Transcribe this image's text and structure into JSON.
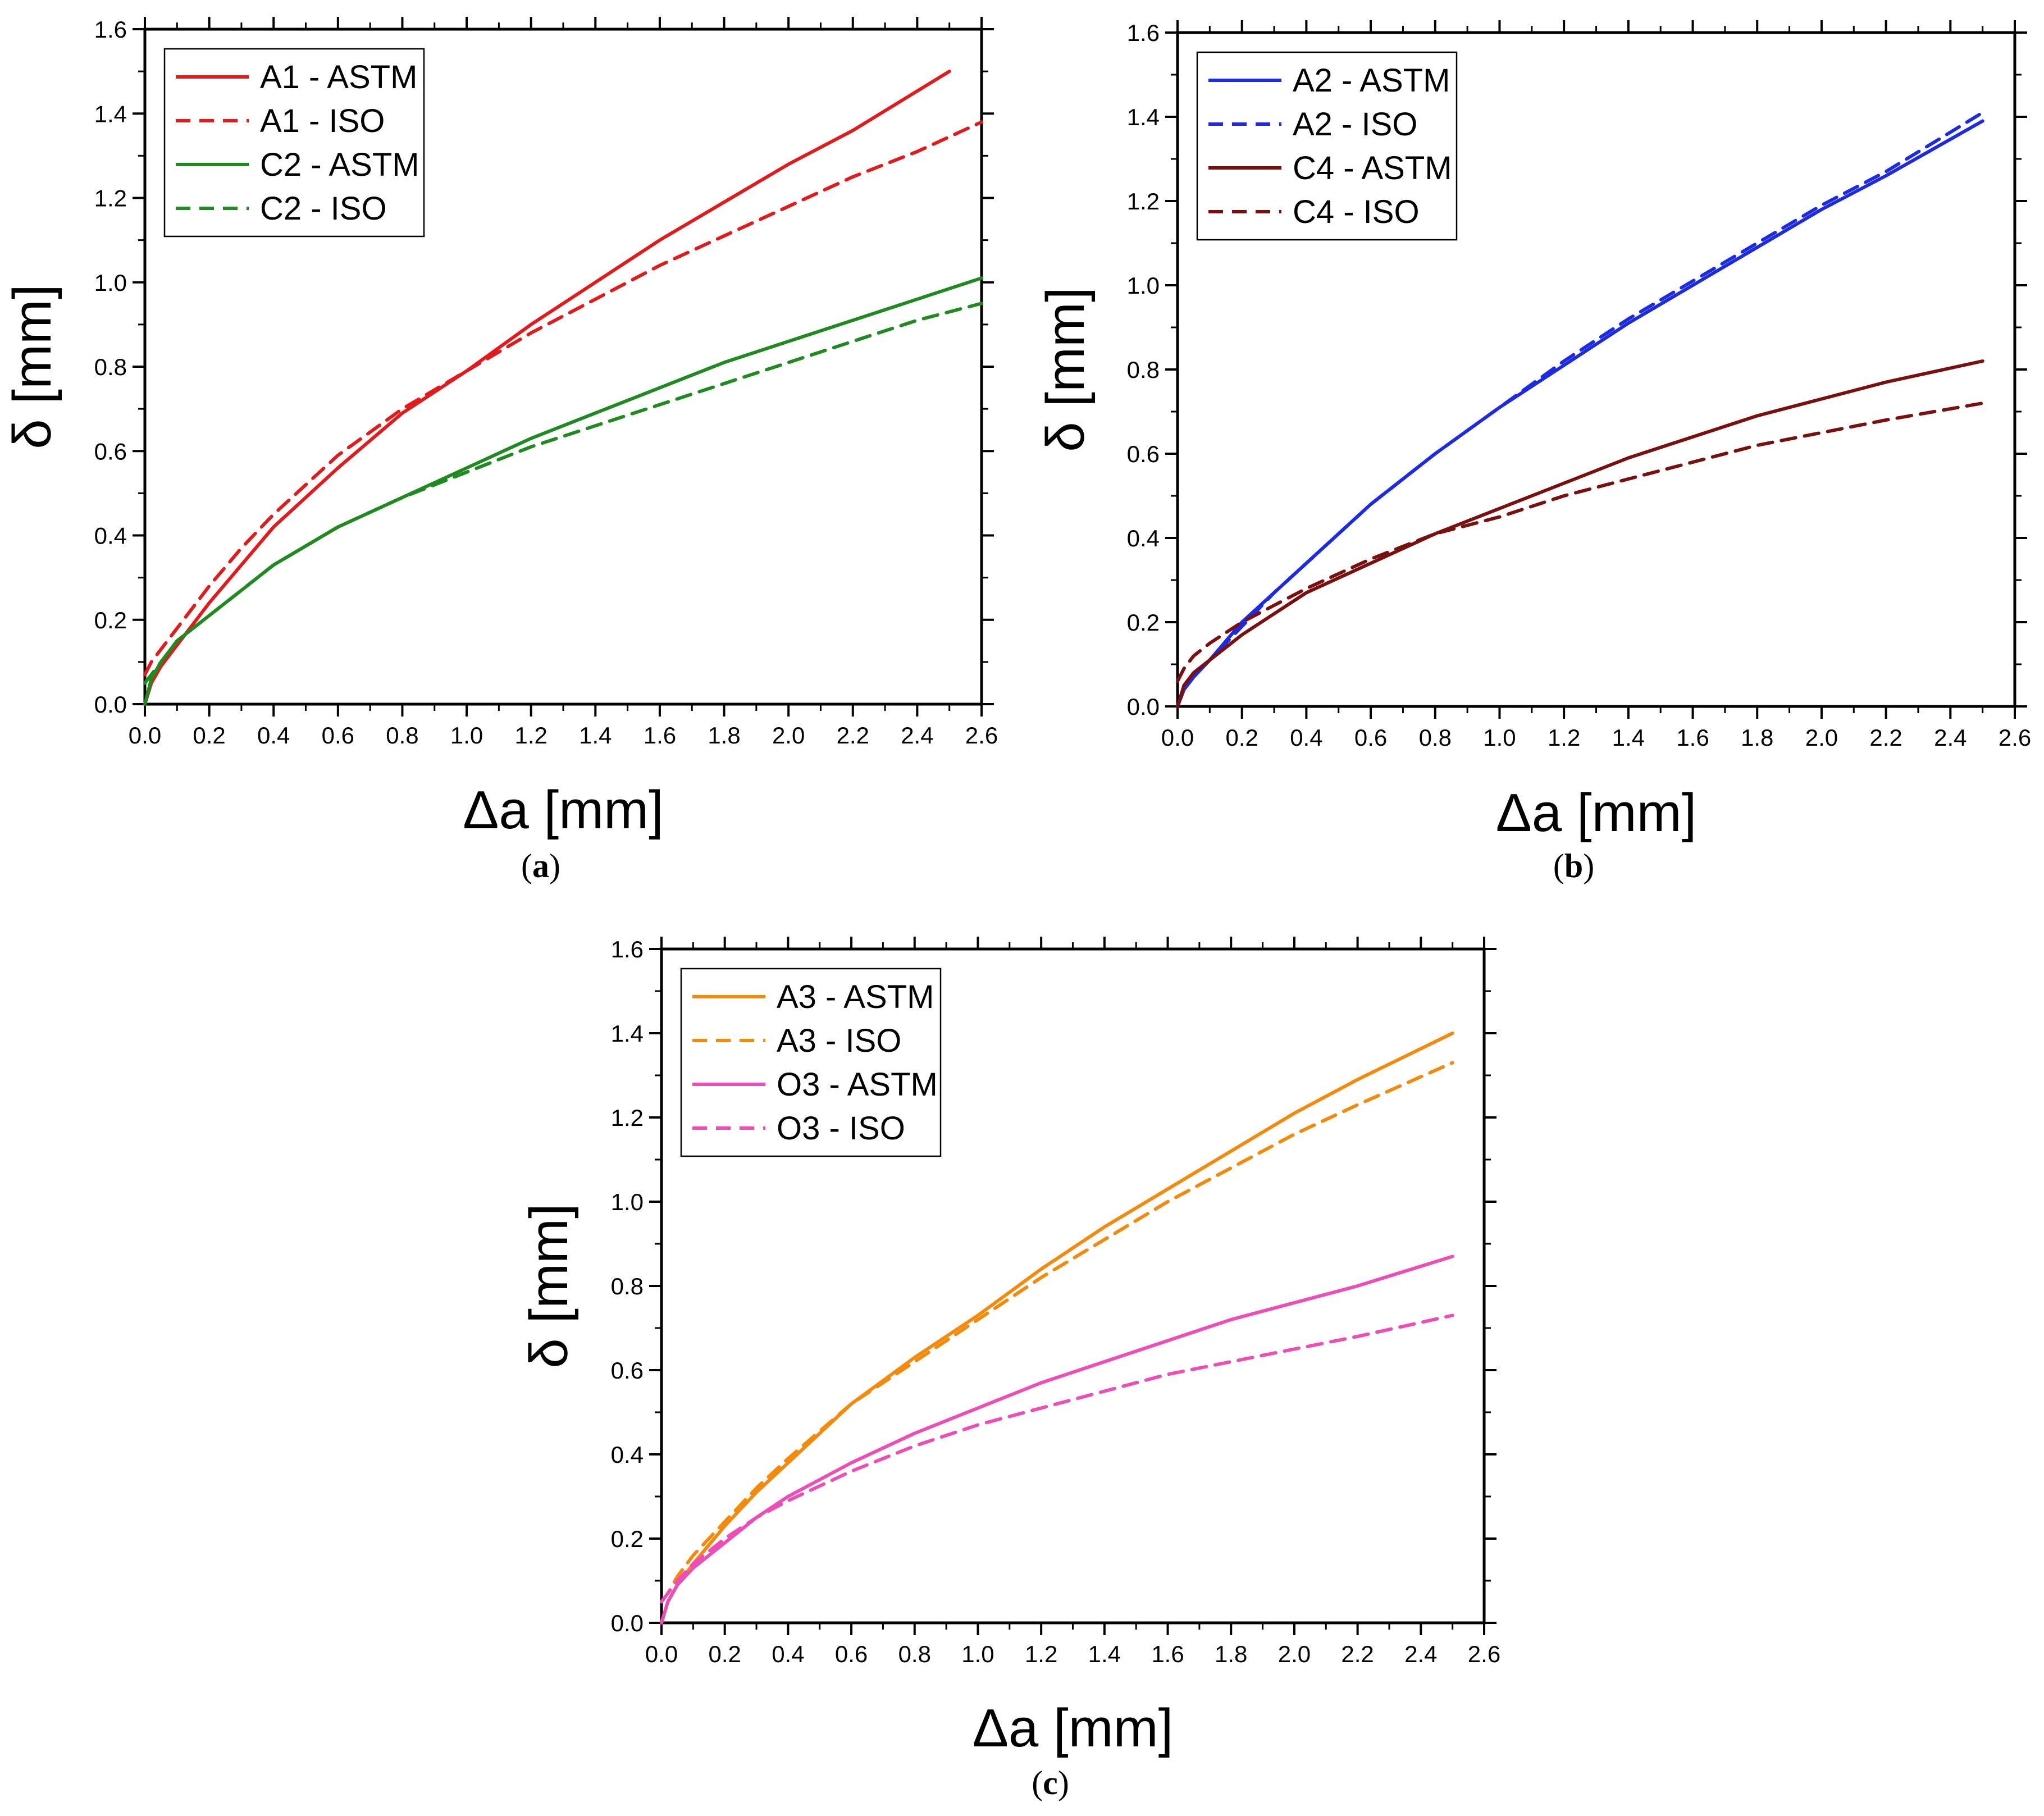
{
  "chart_data": [
    {
      "type": "line",
      "panel_label": "a",
      "xlabel": "Δa [mm]",
      "ylabel": "δ [mm]",
      "xlim": [
        0,
        2.6
      ],
      "ylim": [
        0,
        1.6
      ],
      "xticks": [
        "0.0",
        "0.2",
        "0.4",
        "0.6",
        "0.8",
        "1.0",
        "1.2",
        "1.4",
        "1.6",
        "1.8",
        "2.0",
        "2.2",
        "2.4",
        "2.6"
      ],
      "yticks": [
        "0.0",
        "0.2",
        "0.4",
        "0.6",
        "0.8",
        "1.0",
        "1.2",
        "1.4",
        "1.6"
      ],
      "legend_position": "top-left",
      "series": [
        {
          "name": "A1 - ASTM",
          "color": "#e31a1c",
          "dash": "solid",
          "x": [
            0,
            0.02,
            0.05,
            0.1,
            0.2,
            0.3,
            0.4,
            0.6,
            0.8,
            1.0,
            1.2,
            1.4,
            1.6,
            1.8,
            2.0,
            2.2,
            2.5
          ],
          "y": [
            0,
            0.05,
            0.09,
            0.14,
            0.24,
            0.33,
            0.42,
            0.56,
            0.69,
            0.79,
            0.9,
            1.0,
            1.1,
            1.19,
            1.28,
            1.36,
            1.5
          ]
        },
        {
          "name": "A1 - ISO",
          "color": "#e31a1c",
          "dash": "dashed",
          "x": [
            0,
            0.02,
            0.05,
            0.1,
            0.2,
            0.3,
            0.4,
            0.6,
            0.8,
            1.0,
            1.2,
            1.4,
            1.6,
            1.8,
            2.0,
            2.2,
            2.4,
            2.6
          ],
          "y": [
            0.07,
            0.1,
            0.13,
            0.18,
            0.28,
            0.37,
            0.45,
            0.59,
            0.7,
            0.79,
            0.88,
            0.96,
            1.04,
            1.11,
            1.18,
            1.25,
            1.31,
            1.38
          ]
        },
        {
          "name": "C2 - ASTM",
          "color": "#1f8a1f",
          "dash": "solid",
          "x": [
            0,
            0.02,
            0.05,
            0.1,
            0.2,
            0.3,
            0.4,
            0.6,
            0.8,
            1.0,
            1.2,
            1.4,
            1.6,
            1.8,
            2.0,
            2.2,
            2.4,
            2.6
          ],
          "y": [
            0,
            0.06,
            0.1,
            0.15,
            0.21,
            0.27,
            0.33,
            0.42,
            0.49,
            0.56,
            0.63,
            0.69,
            0.75,
            0.81,
            0.86,
            0.91,
            0.96,
            1.01
          ]
        },
        {
          "name": "C2 - ISO",
          "color": "#1f8a1f",
          "dash": "dashed",
          "x": [
            0,
            0.02,
            0.05,
            0.1,
            0.2,
            0.3,
            0.4,
            0.6,
            0.8,
            1.0,
            1.2,
            1.4,
            1.6,
            1.8,
            2.0,
            2.2,
            2.4,
            2.6
          ],
          "y": [
            0.05,
            0.07,
            0.1,
            0.15,
            0.21,
            0.27,
            0.33,
            0.42,
            0.49,
            0.55,
            0.61,
            0.66,
            0.71,
            0.76,
            0.81,
            0.86,
            0.91,
            0.95
          ]
        }
      ]
    },
    {
      "type": "line",
      "panel_label": "b",
      "xlabel": "Δa [mm]",
      "ylabel": "δ [mm]",
      "xlim": [
        0,
        2.6
      ],
      "ylim": [
        0,
        1.6
      ],
      "xticks": [
        "0.0",
        "0.2",
        "0.4",
        "0.6",
        "0.8",
        "1.0",
        "1.2",
        "1.4",
        "1.6",
        "1.8",
        "2.0",
        "2.2",
        "2.4",
        "2.6"
      ],
      "yticks": [
        "0.0",
        "0.2",
        "0.4",
        "0.6",
        "0.8",
        "1.0",
        "1.2",
        "1.4",
        "1.6"
      ],
      "legend_position": "top-left",
      "series": [
        {
          "name": "A2 - ASTM",
          "color": "#1c2be3",
          "dash": "solid",
          "x": [
            0,
            0.02,
            0.05,
            0.1,
            0.2,
            0.3,
            0.4,
            0.6,
            0.8,
            1.0,
            1.2,
            1.4,
            1.6,
            1.8,
            2.0,
            2.2,
            2.5
          ],
          "y": [
            0,
            0.04,
            0.07,
            0.11,
            0.2,
            0.27,
            0.34,
            0.48,
            0.6,
            0.71,
            0.81,
            0.91,
            1.0,
            1.09,
            1.18,
            1.26,
            1.39
          ]
        },
        {
          "name": "A2 - ISO",
          "color": "#1c2be3",
          "dash": "dashed",
          "x": [
            0,
            0.02,
            0.05,
            0.1,
            0.2,
            0.3,
            0.4,
            0.6,
            0.8,
            1.0,
            1.2,
            1.4,
            1.6,
            1.8,
            2.0,
            2.2,
            2.5
          ],
          "y": [
            0,
            0.04,
            0.07,
            0.11,
            0.19,
            0.27,
            0.34,
            0.48,
            0.6,
            0.71,
            0.82,
            0.92,
            1.01,
            1.1,
            1.19,
            1.27,
            1.41
          ]
        },
        {
          "name": "C4 - ASTM",
          "color": "#7a0f0f",
          "dash": "solid",
          "x": [
            0,
            0.02,
            0.05,
            0.1,
            0.2,
            0.3,
            0.4,
            0.6,
            0.8,
            1.0,
            1.2,
            1.4,
            1.6,
            1.8,
            2.0,
            2.2,
            2.5
          ],
          "y": [
            0,
            0.05,
            0.08,
            0.11,
            0.17,
            0.22,
            0.27,
            0.34,
            0.41,
            0.47,
            0.53,
            0.59,
            0.64,
            0.69,
            0.73,
            0.77,
            0.82
          ]
        },
        {
          "name": "C4 - ISO",
          "color": "#7a0f0f",
          "dash": "dashed",
          "x": [
            0,
            0.02,
            0.05,
            0.1,
            0.2,
            0.3,
            0.4,
            0.6,
            0.8,
            1.0,
            1.2,
            1.4,
            1.6,
            1.8,
            2.0,
            2.2,
            2.5
          ],
          "y": [
            0.06,
            0.09,
            0.12,
            0.15,
            0.2,
            0.24,
            0.28,
            0.35,
            0.41,
            0.45,
            0.5,
            0.54,
            0.58,
            0.62,
            0.65,
            0.68,
            0.72
          ]
        }
      ]
    },
    {
      "type": "line",
      "panel_label": "c",
      "xlabel": "Δa [mm]",
      "ylabel": "δ [mm]",
      "xlim": [
        0,
        2.6
      ],
      "ylim": [
        0,
        1.6
      ],
      "xticks": [
        "0.0",
        "0.2",
        "0.4",
        "0.6",
        "0.8",
        "1.0",
        "1.2",
        "1.4",
        "1.6",
        "1.8",
        "2.0",
        "2.2",
        "2.4",
        "2.6"
      ],
      "yticks": [
        "0.0",
        "0.2",
        "0.4",
        "0.6",
        "0.8",
        "1.0",
        "1.2",
        "1.4",
        "1.6"
      ],
      "legend_position": "top-left",
      "series": [
        {
          "name": "A3 - ASTM",
          "color": "#f58a0a",
          "dash": "solid",
          "x": [
            0,
            0.02,
            0.05,
            0.1,
            0.2,
            0.3,
            0.4,
            0.6,
            0.8,
            1.0,
            1.2,
            1.4,
            1.6,
            1.8,
            2.0,
            2.2,
            2.5
          ],
          "y": [
            0,
            0.05,
            0.09,
            0.14,
            0.23,
            0.31,
            0.38,
            0.52,
            0.63,
            0.73,
            0.84,
            0.94,
            1.03,
            1.12,
            1.21,
            1.29,
            1.4
          ]
        },
        {
          "name": "A3 - ISO",
          "color": "#f58a0a",
          "dash": "dashed",
          "x": [
            0,
            0.02,
            0.05,
            0.1,
            0.2,
            0.3,
            0.4,
            0.6,
            0.8,
            1.0,
            1.2,
            1.4,
            1.6,
            1.8,
            2.0,
            2.2,
            2.5
          ],
          "y": [
            0.05,
            0.07,
            0.11,
            0.16,
            0.24,
            0.32,
            0.39,
            0.52,
            0.62,
            0.72,
            0.82,
            0.91,
            1.0,
            1.08,
            1.16,
            1.23,
            1.33
          ]
        },
        {
          "name": "O3 - ASTM",
          "color": "#ee4db8",
          "dash": "solid",
          "x": [
            0,
            0.02,
            0.05,
            0.1,
            0.2,
            0.3,
            0.4,
            0.6,
            0.8,
            1.0,
            1.2,
            1.4,
            1.6,
            1.8,
            2.0,
            2.2,
            2.5
          ],
          "y": [
            0,
            0.05,
            0.09,
            0.13,
            0.19,
            0.25,
            0.3,
            0.38,
            0.45,
            0.51,
            0.57,
            0.62,
            0.67,
            0.72,
            0.76,
            0.8,
            0.87
          ]
        },
        {
          "name": "O3 - ISO",
          "color": "#ee4db8",
          "dash": "dashed",
          "x": [
            0,
            0.02,
            0.05,
            0.1,
            0.2,
            0.3,
            0.4,
            0.6,
            0.8,
            1.0,
            1.2,
            1.4,
            1.6,
            1.8,
            2.0,
            2.2,
            2.5
          ],
          "y": [
            0.05,
            0.07,
            0.1,
            0.14,
            0.2,
            0.25,
            0.29,
            0.36,
            0.42,
            0.47,
            0.51,
            0.55,
            0.59,
            0.62,
            0.65,
            0.68,
            0.73
          ]
        }
      ]
    }
  ]
}
